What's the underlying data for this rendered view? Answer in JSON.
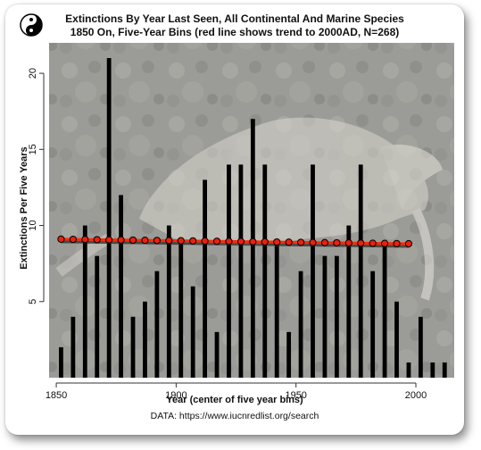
{
  "title_line1": "Extinctions By Year Last Seen, All Continental And Marine Species",
  "title_line2": "1850 On, Five-Year Bins (red line shows trend to 2000AD, N=268)",
  "source": "DATA: https://www.iucnredlist.org/search",
  "colors": {
    "bar": "#000000",
    "trend_line": "#ff2a00",
    "trend_marker_fill": "#e8210f",
    "plot_background": "#9a9a96",
    "axis": "#333333"
  },
  "chart_data": {
    "type": "bar",
    "title": "Extinctions By Year Last Seen, All Continental And Marine Species 1850 On, Five-Year Bins (red line shows trend to 2000AD, N=268)",
    "xlabel": "Year (center of five year bins)",
    "ylabel": "Extinctions Per Five Years",
    "x": [
      1852,
      1857,
      1862,
      1867,
      1872,
      1877,
      1882,
      1887,
      1892,
      1897,
      1902,
      1907,
      1912,
      1917,
      1922,
      1927,
      1932,
      1937,
      1942,
      1947,
      1952,
      1957,
      1962,
      1967,
      1972,
      1977,
      1982,
      1987,
      1992,
      1997,
      2002,
      2007,
      2012
    ],
    "values": [
      2,
      4,
      10,
      8,
      21,
      12,
      4,
      5,
      7,
      10,
      9,
      6,
      13,
      3,
      14,
      14,
      17,
      14,
      9,
      3,
      7,
      14,
      8,
      8,
      10,
      14,
      7,
      9,
      5,
      1,
      4,
      1,
      1
    ],
    "x_ticks": [
      1850,
      1900,
      1950,
      2000
    ],
    "y_ticks": [
      5,
      10,
      15,
      20
    ],
    "xlim": [
      1847,
      2016
    ],
    "ylim": [
      0,
      22
    ],
    "trend": {
      "x": [
        1852,
        1857,
        1862,
        1867,
        1872,
        1877,
        1882,
        1887,
        1892,
        1897,
        1902,
        1907,
        1912,
        1917,
        1922,
        1927,
        1932,
        1937,
        1942,
        1947,
        1952,
        1957,
        1962,
        1967,
        1972,
        1977,
        1982,
        1987,
        1992,
        1997
      ],
      "start": 9.1,
      "end": 8.8
    },
    "grid": false
  }
}
